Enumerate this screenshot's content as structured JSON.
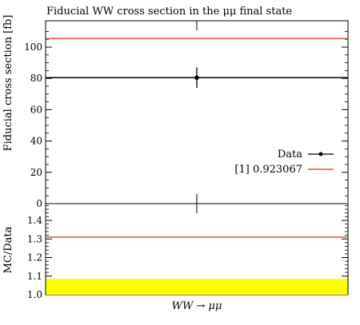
{
  "chart_data": [
    {
      "type": "scatter",
      "title": "Fiducial WW cross section in the μμ final state",
      "ylabel": "Fiducial cross section [fb]",
      "ylim": [
        0,
        115
      ],
      "y_ticks": [
        0,
        20,
        40,
        60,
        80,
        100
      ],
      "categories": [
        "WW → μμ"
      ],
      "series": [
        {
          "name": "Data",
          "kind": "point",
          "y": 80.5,
          "err_low": 6.5,
          "err_high": 6.5
        },
        {
          "name": "[1] 0.923067",
          "kind": "line",
          "y": 105.5,
          "color": "#e8502f"
        }
      ],
      "legend_placement": "right",
      "grid": false
    },
    {
      "type": "line",
      "ylabel": "MC/Data",
      "xlabel": "WW → μμ",
      "ylim": [
        1.0,
        1.5
      ],
      "y_ticks": [
        1.0,
        1.1,
        1.2,
        1.3,
        1.4
      ],
      "series": [
        {
          "name": "[1] 0.923067",
          "kind": "line",
          "y": 1.31,
          "color": "#e8502f"
        }
      ],
      "band": {
        "low": 1.0,
        "high": 1.085,
        "color": "#ffff00"
      }
    }
  ]
}
